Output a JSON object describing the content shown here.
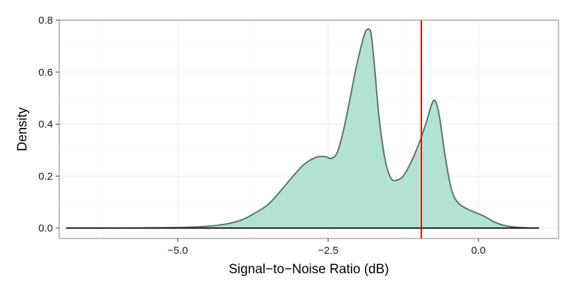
{
  "chart_data": {
    "type": "area",
    "title": "",
    "xlabel": "Signal−to−Noise Ratio (dB)",
    "ylabel": "Density",
    "xlim": [
      -6.97,
      1.33
    ],
    "ylim": [
      -0.04,
      0.8
    ],
    "x_ticks": [
      {
        "value": -5.0,
        "label": "−5.0"
      },
      {
        "value": -2.5,
        "label": "−2.5"
      },
      {
        "value": 0.0,
        "label": "0.0"
      }
    ],
    "y_ticks": [
      {
        "value": 0.0,
        "label": "0.0"
      },
      {
        "value": 0.2,
        "label": "0.2"
      },
      {
        "value": 0.4,
        "label": "0.4"
      },
      {
        "value": 0.6,
        "label": "0.6"
      },
      {
        "value": 0.8,
        "label": "0.8"
      }
    ],
    "grid": true,
    "series": [
      {
        "fill": "#b2e2d2",
        "stroke": "#5f6f68",
        "x": [
          -6.85,
          -6.0,
          -5.5,
          -5.0,
          -4.7,
          -4.5,
          -4.3,
          -4.1,
          -3.9,
          -3.7,
          -3.5,
          -3.3,
          -3.1,
          -2.9,
          -2.7,
          -2.55,
          -2.45,
          -2.35,
          -2.25,
          -2.15,
          -2.05,
          -1.95,
          -1.88,
          -1.82,
          -1.78,
          -1.72,
          -1.65,
          -1.55,
          -1.45,
          -1.35,
          -1.25,
          -1.15,
          -1.05,
          -0.95,
          -0.85,
          -0.78,
          -0.72,
          -0.65,
          -0.55,
          -0.45,
          -0.35,
          -0.2,
          0.0,
          0.1,
          0.25,
          0.4,
          0.6,
          0.8,
          1.0
        ],
        "y": [
          0.0,
          0.0,
          0.001,
          0.002,
          0.004,
          0.007,
          0.012,
          0.02,
          0.035,
          0.06,
          0.09,
          0.14,
          0.195,
          0.245,
          0.272,
          0.275,
          0.268,
          0.29,
          0.37,
          0.48,
          0.6,
          0.7,
          0.755,
          0.765,
          0.74,
          0.6,
          0.42,
          0.26,
          0.19,
          0.185,
          0.2,
          0.24,
          0.29,
          0.35,
          0.42,
          0.475,
          0.49,
          0.43,
          0.27,
          0.15,
          0.1,
          0.075,
          0.055,
          0.045,
          0.025,
          0.012,
          0.004,
          0.001,
          0.0
        ]
      }
    ],
    "vline": {
      "x": -0.95,
      "color": "#ff0000"
    },
    "baseline_color": "#000000"
  }
}
